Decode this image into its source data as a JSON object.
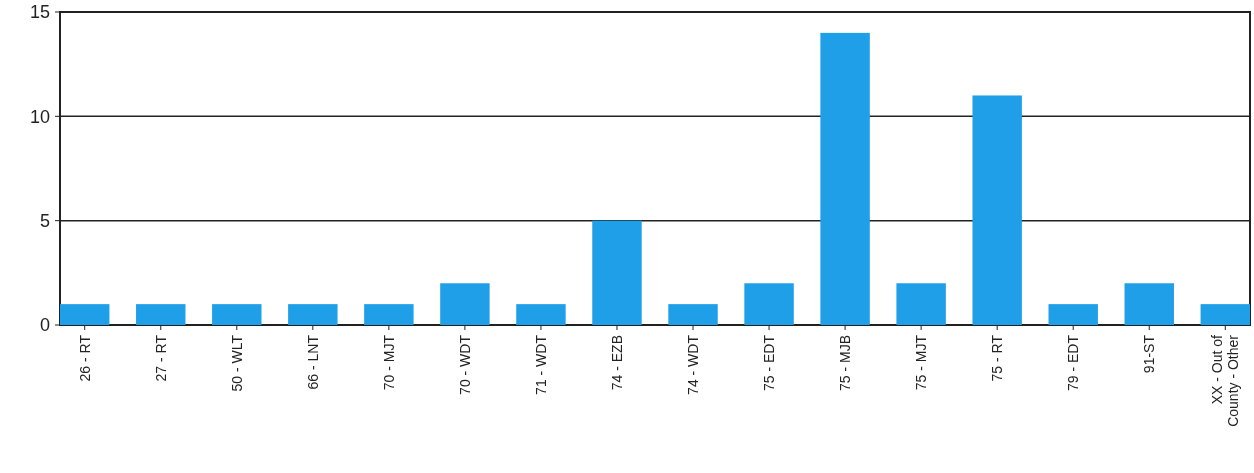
{
  "chart_data": {
    "type": "bar",
    "categories": [
      "26 - RT",
      "27 - RT",
      "50 - WLT",
      "66 - LNT",
      "70 - MJT",
      "70 - WDT",
      "71 - WDT",
      "74 - EZB",
      "74 - WDT",
      "75 - EDT",
      "75 - MJB",
      "75 - MJT",
      "75 - RT",
      "79 - EDT",
      "91-ST",
      "XX - Out of County - Other"
    ],
    "values": [
      1,
      1,
      1,
      1,
      1,
      2,
      1,
      5,
      1,
      2,
      14,
      2,
      11,
      1,
      2,
      1
    ],
    "color": "#1e9fe8",
    "ylim": [
      0,
      15
    ],
    "yticks": [
      0,
      5,
      10,
      15
    ],
    "grid": "y"
  }
}
